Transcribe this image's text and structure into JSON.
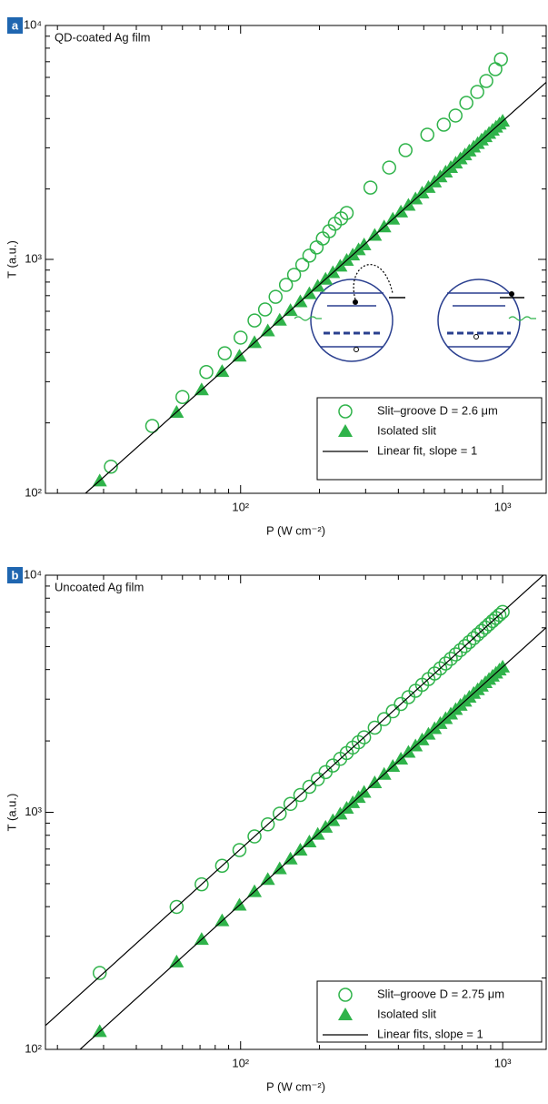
{
  "chart_data": [
    {
      "type": "scatter",
      "panel_label": "a",
      "annotation": "QD-coated Ag film",
      "xlabel": "P (W cm⁻²)",
      "ylabel": "T (a.u.)",
      "xscale": "log",
      "yscale": "log",
      "xlim": [
        18,
        1466
      ],
      "ylim": [
        100,
        10000
      ],
      "xticks": [
        {
          "value": 100,
          "label": "10²"
        },
        {
          "value": 1000,
          "label": "10³"
        }
      ],
      "yticks": [
        {
          "value": 100,
          "label": "10²"
        },
        {
          "value": 1000,
          "label": "10³"
        },
        {
          "value": 10000,
          "label": "10⁴"
        }
      ],
      "minor_xticks": [
        20,
        30,
        40,
        50,
        60,
        70,
        80,
        90,
        200,
        300,
        400,
        500,
        600,
        700,
        800,
        900
      ],
      "minor_yticks": [
        200,
        300,
        400,
        500,
        600,
        700,
        800,
        900,
        2000,
        3000,
        4000,
        5000,
        6000,
        7000,
        8000,
        9000
      ],
      "legend": "lower right",
      "series": [
        {
          "name": "Slit–groove D = 2.6 μm",
          "marker": "circle",
          "color": "#2fb34a",
          "x": [
            32,
            46,
            60,
            74,
            87,
            100,
            113,
            124,
            136,
            149,
            160,
            172,
            183,
            195,
            206,
            218,
            229,
            242,
            254,
            313,
            369,
            426,
            516,
            596,
            661,
            727,
            800,
            866,
            938,
            985
          ],
          "values": [
            130,
            194,
            258,
            330,
            397,
            463,
            548,
            611,
            692,
            778,
            859,
            948,
            1038,
            1125,
            1229,
            1320,
            1420,
            1497,
            1579,
            2028,
            2470,
            2930,
            3412,
            3767,
            4121,
            4668,
            5198,
            5791,
            6506,
            7171
          ]
        },
        {
          "name": "Isolated slit",
          "marker": "triangle",
          "color": "#2fb34a",
          "x": [
            29,
            57,
            71,
            85,
            99,
            113,
            127,
            141,
            155,
            169,
            183,
            197,
            211,
            225,
            240,
            254,
            268,
            282,
            296,
            325,
            353,
            381,
            409,
            437,
            465,
            493,
            521,
            550,
            578,
            606,
            634,
            662,
            690,
            718,
            746,
            775,
            803,
            831,
            859,
            887,
            915,
            943,
            972,
            1000
          ],
          "values": [
            113,
            222,
            277,
            332,
            386,
            441,
            495,
            550,
            605,
            659,
            714,
            768,
            823,
            878,
            936,
            991,
            1045,
            1100,
            1154,
            1268,
            1377,
            1486,
            1595,
            1704,
            1814,
            1923,
            2032,
            2145,
            2254,
            2363,
            2473,
            2582,
            2691,
            2800,
            2909,
            3023,
            3132,
            3241,
            3350,
            3459,
            3569,
            3678,
            3791,
            3900
          ]
        },
        {
          "name": "Linear fit, slope = 1",
          "marker": "line",
          "color": "#000000",
          "x": [
            25.6,
            1466
          ],
          "values": [
            100,
            5717
          ]
        }
      ]
    },
    {
      "type": "scatter",
      "panel_label": "b",
      "annotation": "Uncoated Ag film",
      "xlabel": "P (W cm⁻²)",
      "ylabel": "T (a.u.)",
      "xscale": "log",
      "yscale": "log",
      "xlim": [
        18,
        1466
      ],
      "ylim": [
        100,
        10000
      ],
      "xticks": [
        {
          "value": 100,
          "label": "10²"
        },
        {
          "value": 1000,
          "label": "10³"
        }
      ],
      "yticks": [
        {
          "value": 100,
          "label": "10²"
        },
        {
          "value": 1000,
          "label": "10³"
        },
        {
          "value": 10000,
          "label": "10⁴"
        }
      ],
      "minor_xticks": [
        20,
        30,
        40,
        50,
        60,
        70,
        80,
        90,
        200,
        300,
        400,
        500,
        600,
        700,
        800,
        900
      ],
      "minor_yticks": [
        200,
        300,
        400,
        500,
        600,
        700,
        800,
        900,
        2000,
        3000,
        4000,
        5000,
        6000,
        7000,
        8000,
        9000
      ],
      "legend": "lower right",
      "series": [
        {
          "name": "Slit–groove D = 2.75 μm",
          "marker": "circle",
          "color": "#2fb34a",
          "x": [
            29,
            57,
            71,
            85,
            99,
            113,
            127,
            141,
            155,
            169,
            183,
            197,
            211,
            225,
            240,
            254,
            268,
            282,
            296,
            325,
            353,
            381,
            409,
            437,
            465,
            493,
            521,
            550,
            578,
            606,
            634,
            662,
            690,
            718,
            746,
            775,
            803,
            831,
            859,
            887,
            915,
            943,
            972,
            1000
          ],
          "values": [
            210,
            399,
            497,
            595,
            693,
            791,
            889,
            987,
            1085,
            1183,
            1281,
            1379,
            1477,
            1575,
            1680,
            1778,
            1876,
            1974,
            2072,
            2275,
            2471,
            2667,
            2863,
            3059,
            3255,
            3451,
            3647,
            3850,
            4046,
            4242,
            4438,
            4634,
            4830,
            5026,
            5222,
            5425,
            5621,
            5817,
            6013,
            6209,
            6405,
            6601,
            6804,
            7000
          ]
        },
        {
          "name": "Isolated slit",
          "marker": "triangle",
          "color": "#2fb34a",
          "x": [
            29,
            57,
            71,
            85,
            99,
            113,
            127,
            141,
            155,
            169,
            183,
            197,
            211,
            225,
            240,
            254,
            268,
            282,
            296,
            325,
            353,
            381,
            409,
            437,
            465,
            493,
            521,
            550,
            578,
            606,
            634,
            662,
            690,
            718,
            746,
            775,
            803,
            831,
            859,
            887,
            915,
            943,
            972,
            1000
          ],
          "values": [
            119,
            234,
            291,
            349,
            406,
            463,
            521,
            578,
            636,
            693,
            750,
            808,
            865,
            923,
            984,
            1041,
            1099,
            1156,
            1214,
            1333,
            1447,
            1562,
            1677,
            1792,
            1907,
            2021,
            2136,
            2255,
            2370,
            2485,
            2599,
            2714,
            2829,
            2944,
            3059,
            3178,
            3292,
            3407,
            3522,
            3637,
            3752,
            3866,
            3985,
            4100
          ]
        },
        {
          "name": "Linear fits, slope = 1",
          "marker": "line",
          "color": "#000000",
          "x": [
            18,
            1429
          ],
          "values": [
            126,
            10000
          ]
        },
        {
          "marker": "line",
          "color": "#000000",
          "x": [
            24.4,
            1466
          ],
          "values": [
            100,
            6011
          ]
        }
      ]
    }
  ]
}
